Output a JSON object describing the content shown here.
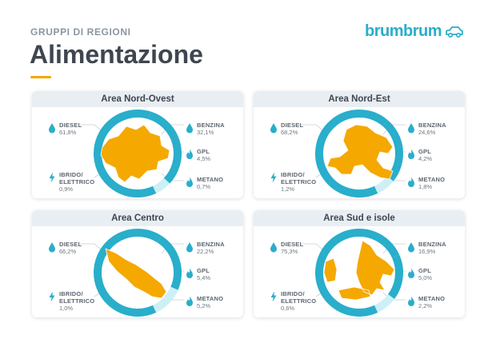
{
  "header": {
    "subtitle": "GRUPPI DI REGIONI",
    "title": "Alimentazione",
    "brand": "brumbrum"
  },
  "colors": {
    "accent": "#f5a800",
    "ring_main": "#29aecb",
    "ring_light": "#cdeff6",
    "icon": "#29aecb",
    "card_header_bg": "#e9eef3"
  },
  "chart_data": [
    {
      "type": "pie",
      "title": "Area Nord-Ovest",
      "labels": {
        "diesel": [
          "DIESEL"
        ],
        "benzina": [
          "BENZINA"
        ],
        "gpl": [
          "GPL"
        ],
        "metano": [
          "METANO"
        ],
        "ibrido": [
          "IBRIDO/",
          "ELETTRICO"
        ]
      },
      "values": {
        "diesel": "61,8%",
        "benzina": "32,1%",
        "gpl": "4,5%",
        "metano": "0,7%",
        "ibrido": "0,9%"
      },
      "numeric": {
        "diesel": 61.8,
        "benzina": 32.1,
        "gpl": 4.5,
        "metano": 0.7,
        "ibrido": 0.9
      }
    },
    {
      "type": "pie",
      "title": "Area Nord-Est",
      "labels": {
        "diesel": [
          "DIESEL"
        ],
        "benzina": [
          "BENZINA"
        ],
        "gpl": [
          "GPL"
        ],
        "metano": [
          "METANO"
        ],
        "ibrido": [
          "IBRIDO/",
          "ELETTRICO"
        ]
      },
      "values": {
        "diesel": "68,2%",
        "benzina": "24,6%",
        "gpl": "4,2%",
        "metano": "1,8%",
        "ibrido": "1,2%"
      },
      "numeric": {
        "diesel": 68.2,
        "benzina": 24.6,
        "gpl": 4.2,
        "metano": 1.8,
        "ibrido": 1.2
      }
    },
    {
      "type": "pie",
      "title": "Area Centro",
      "labels": {
        "diesel": [
          "DIESEL"
        ],
        "benzina": [
          "BENZINA"
        ],
        "gpl": [
          "GPL"
        ],
        "metano": [
          "METANO"
        ],
        "ibrido": [
          "IBRIDO/",
          "ELETTRICO"
        ]
      },
      "values": {
        "diesel": "66,2%",
        "benzina": "22,2%",
        "gpl": "5,4%",
        "metano": "5,2%",
        "ibrido": "1,0%"
      },
      "numeric": {
        "diesel": 66.2,
        "benzina": 22.2,
        "gpl": 5.4,
        "metano": 5.2,
        "ibrido": 1.0
      }
    },
    {
      "type": "pie",
      "title": "Area Sud e isole",
      "labels": {
        "diesel": [
          "DIESEL"
        ],
        "benzina": [
          "BENZINA"
        ],
        "gpl": [
          "GPL"
        ],
        "metano": [
          "METANO"
        ],
        "ibrido": [
          "IBRIDO/",
          "ELETTRICO"
        ]
      },
      "values": {
        "diesel": "75,3%",
        "benzina": "16,9%",
        "gpl": "5,0%",
        "metano": "2,2%",
        "ibrido": "0,6%"
      },
      "numeric": {
        "diesel": 75.3,
        "benzina": 16.9,
        "gpl": 5.0,
        "metano": 2.2,
        "ibrido": 0.6
      }
    }
  ]
}
